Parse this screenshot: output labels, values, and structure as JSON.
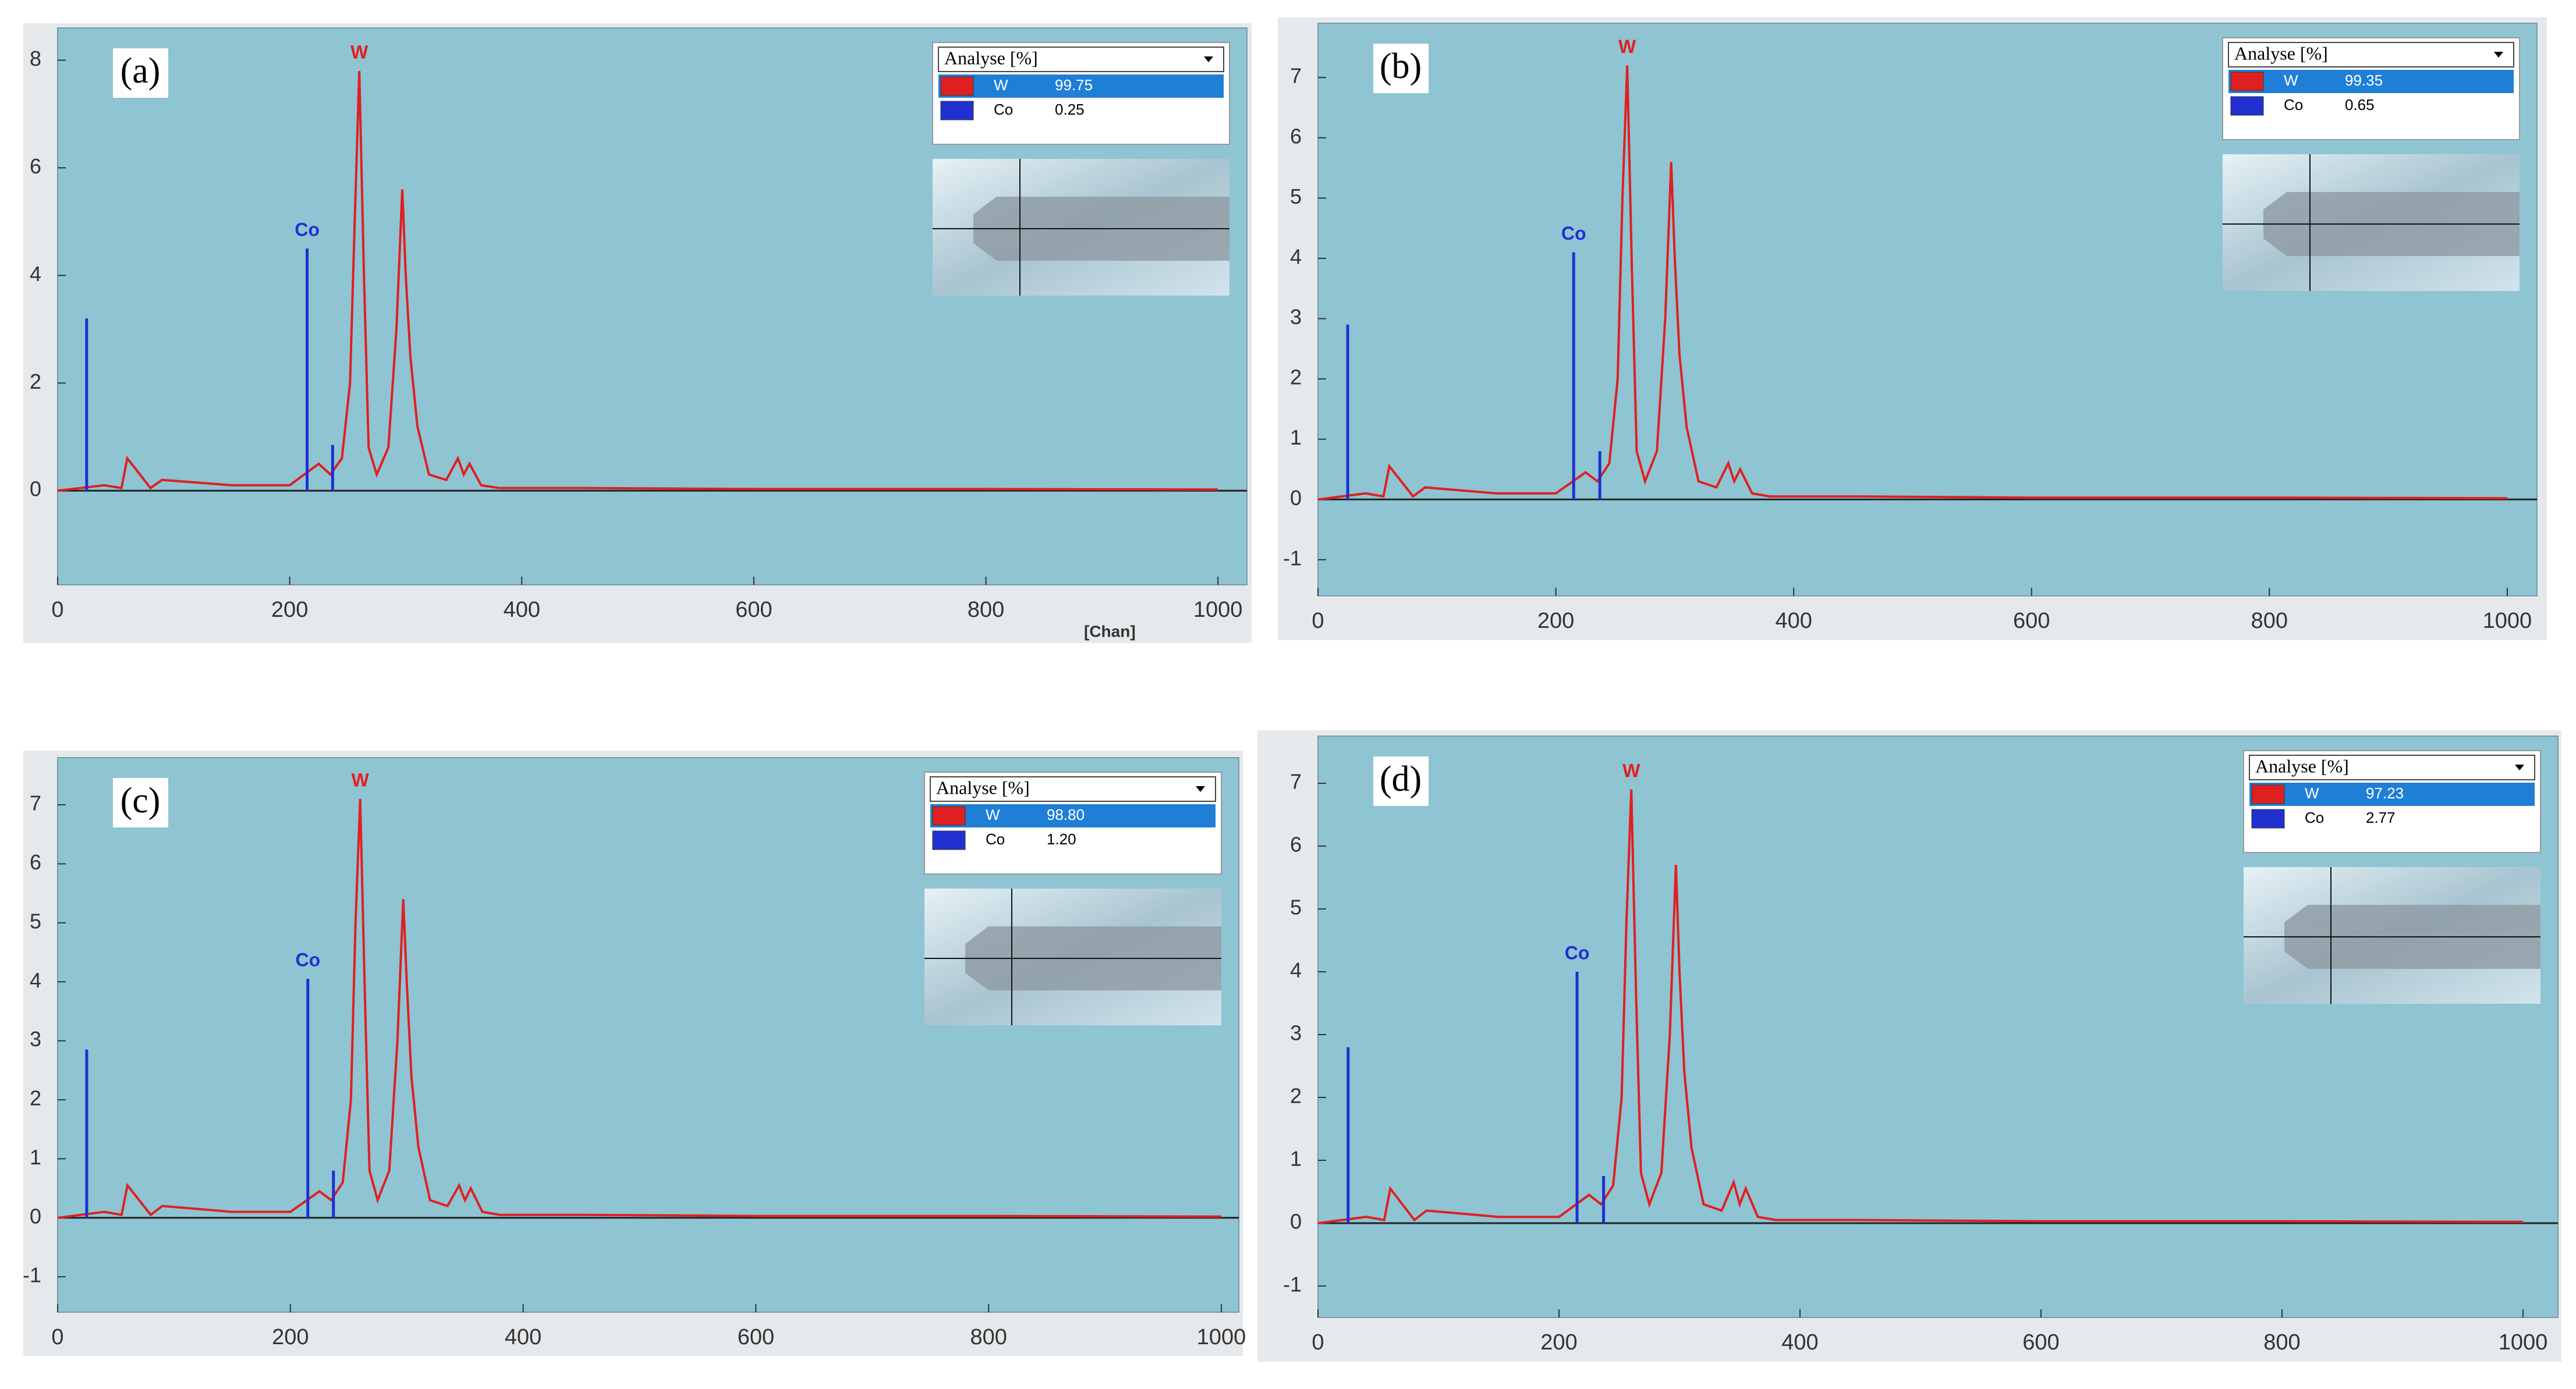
{
  "chart_data": [
    {
      "type": "line",
      "label": "(a)",
      "x_label": "[Chan]",
      "legend_title": "Analyse [%]",
      "xlim": [
        0,
        1025
      ],
      "xticks": [
        0,
        200,
        400,
        600,
        800,
        1000
      ],
      "ylim": [
        -1.75,
        8.6
      ],
      "yticks": [
        0,
        2,
        4,
        6,
        8
      ],
      "series": [
        {
          "name": "W",
          "color": "#e02020",
          "share": "99.75",
          "style": "line",
          "x": [
            0,
            20,
            40,
            55,
            60,
            80,
            90,
            150,
            200,
            225,
            235,
            245,
            252,
            256,
            260,
            264,
            268,
            275,
            285,
            292,
            297,
            300,
            304,
            310,
            320,
            335,
            345,
            350,
            355,
            365,
            380,
            450,
            600,
            800,
            1000
          ],
          "values": [
            0,
            0.05,
            0.1,
            0.05,
            0.6,
            0.05,
            0.2,
            0.1,
            0.1,
            0.5,
            0.3,
            0.6,
            2,
            5,
            7.8,
            4,
            0.8,
            0.3,
            0.8,
            3,
            5.6,
            4,
            2.5,
            1.2,
            0.3,
            0.2,
            0.6,
            0.3,
            0.5,
            0.1,
            0.05,
            0.05,
            0.03,
            0.03,
            0.02
          ]
        },
        {
          "name": "Co",
          "color": "#2030d0",
          "share": "0.25",
          "style": "stem",
          "x": [
            25,
            215,
            237
          ],
          "values": [
            3.2,
            4.5,
            0.85
          ]
        }
      ]
    },
    {
      "type": "line",
      "label": "(b)",
      "legend_title": "Analyse [%]",
      "xlim": [
        0,
        1025
      ],
      "xticks": [
        0,
        200,
        400,
        600,
        800,
        1000
      ],
      "ylim": [
        -1.6,
        7.9
      ],
      "yticks": [
        -1,
        0,
        1,
        2,
        3,
        4,
        5,
        6,
        7
      ],
      "series": [
        {
          "name": "W",
          "color": "#e02020",
          "share": "99.35",
          "style": "line",
          "x": [
            0,
            20,
            40,
            55,
            60,
            80,
            90,
            150,
            200,
            225,
            235,
            245,
            252,
            256,
            260,
            264,
            268,
            275,
            285,
            292,
            297,
            300,
            304,
            310,
            320,
            335,
            345,
            350,
            355,
            365,
            380,
            450,
            600,
            800,
            1000
          ],
          "values": [
            0,
            0.05,
            0.1,
            0.05,
            0.55,
            0.05,
            0.2,
            0.1,
            0.1,
            0.45,
            0.3,
            0.6,
            2,
            5,
            7.2,
            3.8,
            0.8,
            0.3,
            0.8,
            3,
            5.6,
            4,
            2.4,
            1.2,
            0.3,
            0.2,
            0.6,
            0.3,
            0.5,
            0.1,
            0.05,
            0.05,
            0.03,
            0.03,
            0.02
          ]
        },
        {
          "name": "Co",
          "color": "#2030d0",
          "share": "0.65",
          "style": "stem",
          "x": [
            25,
            215,
            237
          ],
          "values": [
            2.9,
            4.1,
            0.8
          ]
        }
      ]
    },
    {
      "type": "line",
      "label": "(c)",
      "legend_title": "Analyse [%]",
      "xlim": [
        0,
        1015
      ],
      "xticks": [
        0,
        200,
        400,
        600,
        800,
        1000
      ],
      "ylim": [
        -1.6,
        7.8
      ],
      "yticks": [
        -1,
        0,
        1,
        2,
        3,
        4,
        5,
        6,
        7
      ],
      "series": [
        {
          "name": "W",
          "color": "#e02020",
          "share": "98.80",
          "style": "line",
          "x": [
            0,
            20,
            40,
            55,
            60,
            80,
            90,
            150,
            200,
            225,
            235,
            245,
            252,
            256,
            260,
            264,
            268,
            275,
            285,
            292,
            297,
            300,
            304,
            310,
            320,
            335,
            345,
            350,
            355,
            365,
            380,
            450,
            600,
            800,
            1000
          ],
          "values": [
            0,
            0.05,
            0.1,
            0.05,
            0.55,
            0.05,
            0.2,
            0.1,
            0.1,
            0.45,
            0.3,
            0.6,
            2,
            5,
            7.1,
            3.8,
            0.8,
            0.3,
            0.8,
            3,
            5.4,
            4,
            2.4,
            1.2,
            0.3,
            0.2,
            0.55,
            0.3,
            0.5,
            0.1,
            0.05,
            0.05,
            0.03,
            0.03,
            0.02
          ]
        },
        {
          "name": "Co",
          "color": "#2030d0",
          "share": "1.20",
          "style": "stem",
          "x": [
            25,
            215,
            237
          ],
          "values": [
            2.85,
            4.05,
            0.8
          ]
        }
      ]
    },
    {
      "type": "line",
      "label": "(d)",
      "legend_title": "Analyse [%]",
      "xlim": [
        0,
        1029
      ],
      "xticks": [
        0,
        200,
        400,
        600,
        800,
        1000
      ],
      "ylim": [
        -1.5,
        7.75
      ],
      "yticks": [
        -1,
        0,
        1,
        2,
        3,
        4,
        5,
        6,
        7
      ],
      "series": [
        {
          "name": "W",
          "color": "#e02020",
          "share": "97.23",
          "style": "line",
          "x": [
            0,
            20,
            40,
            55,
            60,
            80,
            90,
            150,
            200,
            225,
            235,
            245,
            252,
            256,
            260,
            264,
            268,
            275,
            285,
            292,
            297,
            300,
            304,
            310,
            320,
            335,
            345,
            350,
            355,
            365,
            380,
            450,
            600,
            800,
            1000
          ],
          "values": [
            0,
            0.05,
            0.1,
            0.05,
            0.55,
            0.05,
            0.2,
            0.1,
            0.1,
            0.45,
            0.3,
            0.6,
            2,
            4.8,
            6.9,
            3.6,
            0.8,
            0.3,
            0.8,
            3,
            5.7,
            4,
            2.4,
            1.2,
            0.3,
            0.2,
            0.65,
            0.3,
            0.55,
            0.1,
            0.05,
            0.05,
            0.03,
            0.03,
            0.02
          ]
        },
        {
          "name": "Co",
          "color": "#2030d0",
          "share": "2.77",
          "style": "stem",
          "x": [
            25,
            215,
            237
          ],
          "values": [
            2.8,
            4.0,
            0.75
          ]
        }
      ]
    }
  ]
}
